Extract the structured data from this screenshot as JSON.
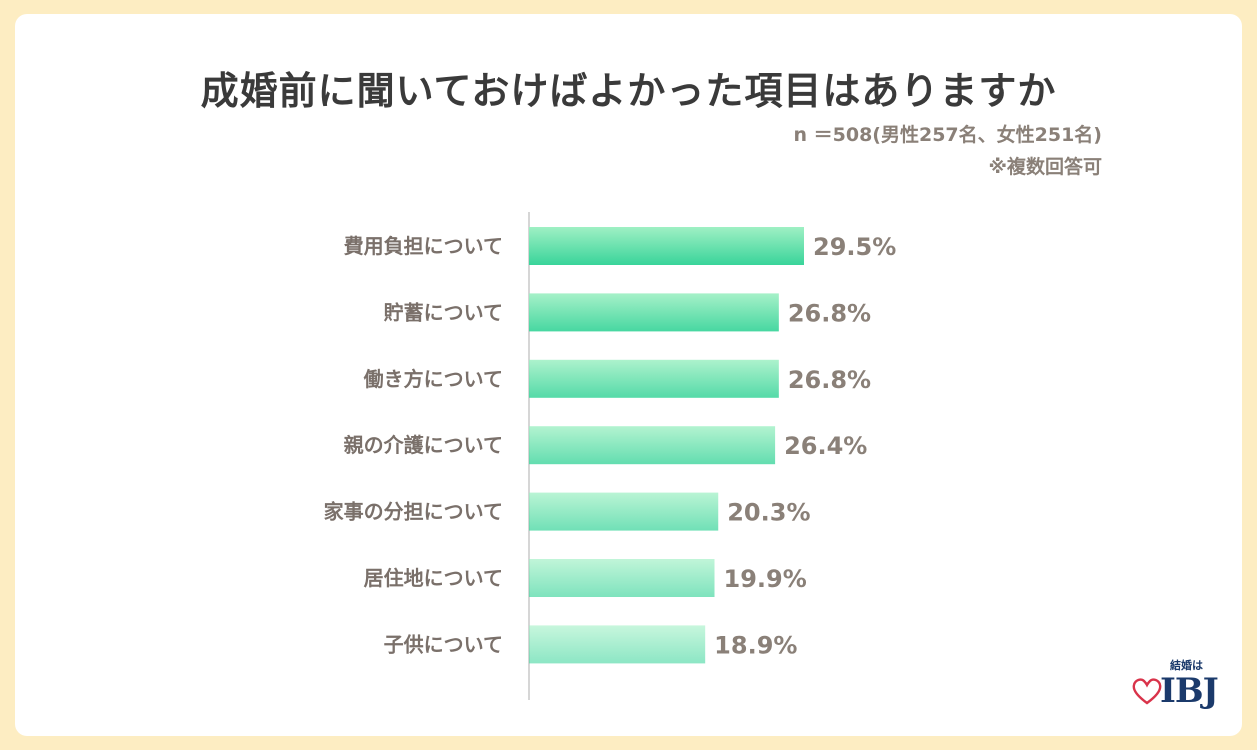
{
  "title": "成婚前に聞いておけばよかった項目はありますか",
  "sample_note": "n ＝508(男性257名、女性251名)",
  "multi_answer_note": "※複数回答可",
  "logo": {
    "small_text": "結婚は",
    "brand": "IBJ"
  },
  "colors": {
    "bar_top": "#9ff0c4",
    "bar_bottom": "#39d49a",
    "value_text": "#8a8078",
    "label_text": "#7a706a",
    "axis": "#c8c8c8"
  },
  "chart_data": {
    "type": "bar",
    "orientation": "horizontal",
    "title": "成婚前に聞いておけばよかった項目はありますか",
    "categories": [
      "費用負担について",
      "貯蓄について",
      "働き方について",
      "親の介護について",
      "家事の分担について",
      "居住地について",
      "子供について"
    ],
    "values": [
      29.5,
      26.8,
      26.8,
      26.4,
      20.3,
      19.9,
      18.9
    ],
    "value_labels": [
      "29.5%",
      "26.8%",
      "26.8%",
      "26.4%",
      "20.3%",
      "19.9%",
      "18.9%"
    ],
    "unit": "%",
    "xlim": [
      0,
      100
    ],
    "grid": false,
    "legend": "none"
  }
}
